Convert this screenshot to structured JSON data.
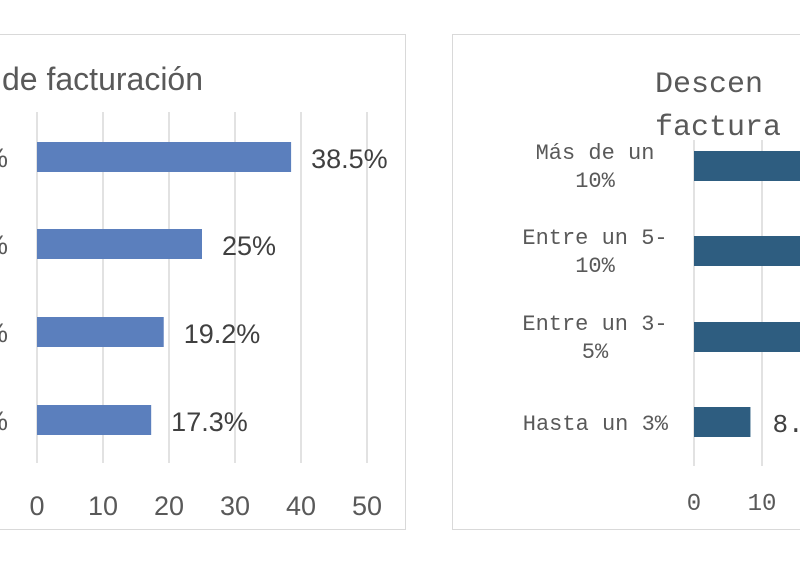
{
  "chart_data": [
    {
      "type": "bar",
      "orientation": "horizontal",
      "title": "de facturación",
      "categories": [
        "%",
        "%",
        "%",
        "%"
      ],
      "values": [
        38.5,
        25,
        19.2,
        17.3
      ],
      "data_labels": [
        "38.5%",
        "25%",
        "19.2%",
        "17.3%"
      ],
      "xlim": [
        0,
        50
      ],
      "xticks": [
        "0",
        "10",
        "20",
        "30",
        "40",
        "50"
      ],
      "grid": true,
      "bar_color": "#5b7fbd"
    },
    {
      "type": "bar",
      "orientation": "horizontal",
      "title_lines": [
        "Descen",
        "factura"
      ],
      "categories": [
        [
          "Más de un",
          "10%"
        ],
        [
          "Entre un 5-",
          "10%"
        ],
        [
          "Entre un 3-",
          "5%"
        ],
        [
          "Hasta un 3%"
        ]
      ],
      "values": [
        null,
        null,
        null,
        8.3
      ],
      "data_labels": [
        "",
        "",
        "",
        "8."
      ],
      "xlim": [
        0,
        50
      ],
      "xticks": [
        "0",
        "10"
      ],
      "grid": true,
      "bar_color": "#2e5d80"
    }
  ]
}
